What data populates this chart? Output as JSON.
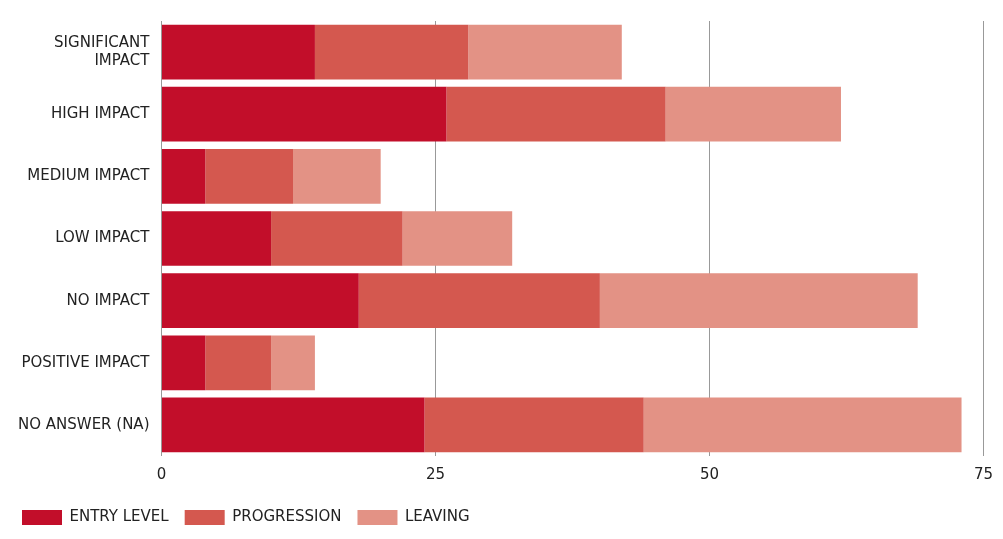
{
  "chart_data": {
    "type": "bar",
    "orientation": "horizontal",
    "stacked": true,
    "categories": [
      "SIGNIFICANT IMPACT",
      "HIGH IMPACT",
      "MEDIUM IMPACT",
      "LOW IMPACT",
      "NO IMPACT",
      "POSITIVE IMPACT",
      "NO ANSWER (NA)"
    ],
    "series": [
      {
        "name": "ENTRY LEVEL",
        "color": "#c20e2a",
        "values": [
          14,
          26,
          4,
          10,
          18,
          4,
          24
        ]
      },
      {
        "name": "PROGRESSION",
        "color": "#d4584f",
        "values": [
          14,
          20,
          8,
          12,
          22,
          6,
          20
        ]
      },
      {
        "name": "LEAVING",
        "color": "#e39285",
        "values": [
          14,
          16,
          8,
          10,
          29,
          4,
          29
        ]
      }
    ],
    "xlim": [
      0,
      75
    ],
    "xticks": [
      0,
      25,
      50,
      75
    ],
    "grid": "x",
    "legend": "bottom left"
  }
}
